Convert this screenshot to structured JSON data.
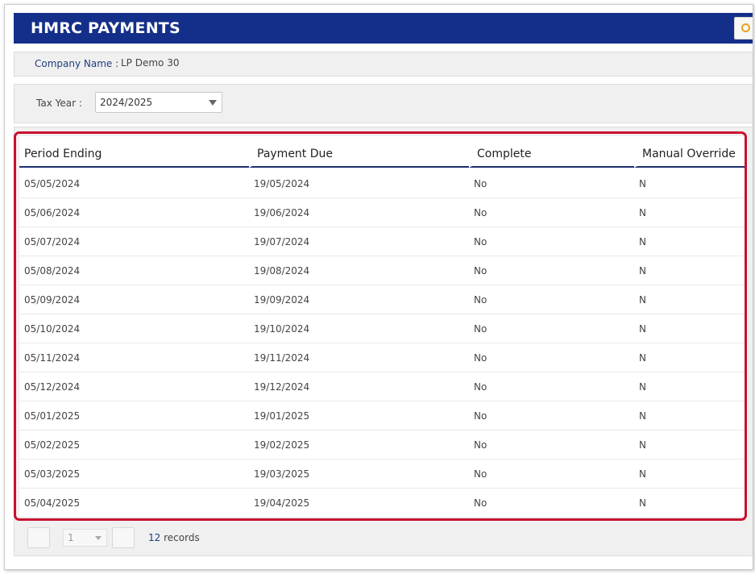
{
  "header": {
    "title": "HMRC PAYMENTS"
  },
  "company": {
    "label": "Company Name :",
    "value": "LP Demo 30"
  },
  "tax_year": {
    "label": "Tax Year :",
    "selected": "2024/2025"
  },
  "grid": {
    "columns": [
      "Period Ending",
      "Payment Due",
      "Complete",
      "Manual Override"
    ],
    "rows": [
      [
        "05/05/2024",
        "19/05/2024",
        "No",
        "N"
      ],
      [
        "05/06/2024",
        "19/06/2024",
        "No",
        "N"
      ],
      [
        "05/07/2024",
        "19/07/2024",
        "No",
        "N"
      ],
      [
        "05/08/2024",
        "19/08/2024",
        "No",
        "N"
      ],
      [
        "05/09/2024",
        "19/09/2024",
        "No",
        "N"
      ],
      [
        "05/10/2024",
        "19/10/2024",
        "No",
        "N"
      ],
      [
        "05/11/2024",
        "19/11/2024",
        "No",
        "N"
      ],
      [
        "05/12/2024",
        "19/12/2024",
        "No",
        "N"
      ],
      [
        "05/01/2025",
        "19/01/2025",
        "No",
        "N"
      ],
      [
        "05/02/2025",
        "19/02/2025",
        "No",
        "N"
      ],
      [
        "05/03/2025",
        "19/03/2025",
        "No",
        "N"
      ],
      [
        "05/04/2025",
        "19/04/2025",
        "No",
        "N"
      ]
    ]
  },
  "pager": {
    "page": "1",
    "count": "12",
    "records_label": "records"
  },
  "colors": {
    "header_bg": "#142f8a",
    "highlight": "#c8102e",
    "accent": "#e8a21a"
  }
}
